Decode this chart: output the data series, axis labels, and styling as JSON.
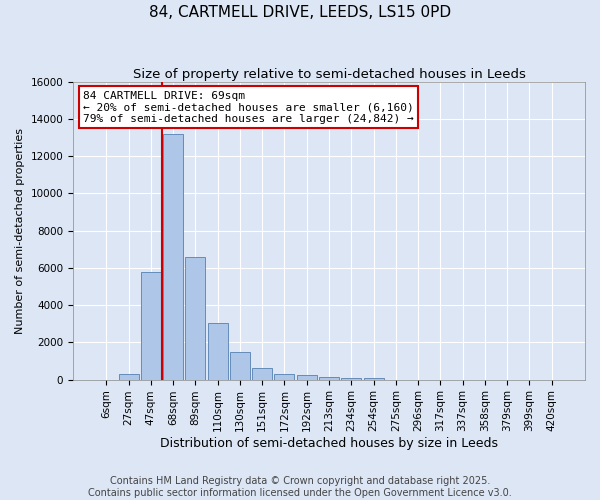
{
  "title": "84, CARTMELL DRIVE, LEEDS, LS15 0PD",
  "subtitle": "Size of property relative to semi-detached houses in Leeds",
  "xlabel": "Distribution of semi-detached houses by size in Leeds",
  "ylabel": "Number of semi-detached properties",
  "bar_labels": [
    "6sqm",
    "27sqm",
    "47sqm",
    "68sqm",
    "89sqm",
    "110sqm",
    "130sqm",
    "151sqm",
    "172sqm",
    "192sqm",
    "213sqm",
    "234sqm",
    "254sqm",
    "275sqm",
    "296sqm",
    "317sqm",
    "337sqm",
    "358sqm",
    "379sqm",
    "399sqm",
    "420sqm"
  ],
  "bar_values": [
    0,
    300,
    5800,
    13200,
    6600,
    3050,
    1500,
    600,
    300,
    250,
    150,
    80,
    80,
    0,
    0,
    0,
    0,
    0,
    0,
    0,
    0
  ],
  "bar_color": "#aec6e8",
  "bar_edge_color": "#5580b0",
  "background_color": "#dce6f5",
  "fig_background_color": "#dce6f5",
  "grid_color": "#ffffff",
  "annotation_text": "84 CARTMELL DRIVE: 69sqm\n← 20% of semi-detached houses are smaller (6,160)\n79% of semi-detached houses are larger (24,842) →",
  "annotation_box_color": "#ffffff",
  "annotation_box_edge_color": "#cc0000",
  "vline_color": "#cc0000",
  "ylim": [
    0,
    16000
  ],
  "yticks": [
    0,
    2000,
    4000,
    6000,
    8000,
    10000,
    12000,
    14000,
    16000
  ],
  "footer_line1": "Contains HM Land Registry data © Crown copyright and database right 2025.",
  "footer_line2": "Contains public sector information licensed under the Open Government Licence v3.0.",
  "title_fontsize": 11,
  "subtitle_fontsize": 9.5,
  "ylabel_fontsize": 8,
  "xlabel_fontsize": 9,
  "tick_fontsize": 7.5,
  "footer_fontsize": 7,
  "annotation_fontsize": 8
}
